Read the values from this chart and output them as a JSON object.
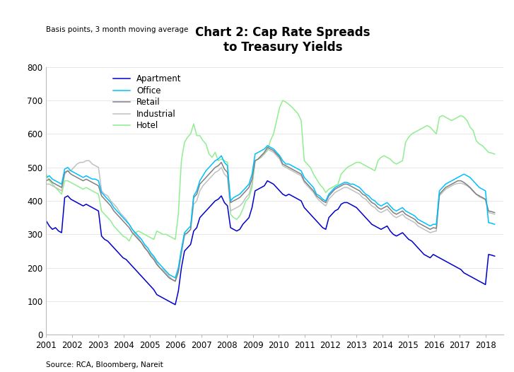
{
  "title": "Chart 2: Cap Rate Spreads\nto Treasury Yields",
  "subtitle": "Basis points, 3 month moving average",
  "source": "Source: RCA, Bloomberg, Nareit",
  "ylim": [
    0,
    800
  ],
  "yticks": [
    0,
    100,
    200,
    300,
    400,
    500,
    600,
    700,
    800
  ],
  "colors": {
    "Apartment": "#0000CD",
    "Office": "#00BFFF",
    "Retail": "#808080",
    "Industrial": "#C0C0C0",
    "Hotel": "#90EE90"
  },
  "series": {
    "Apartment": [
      340,
      325,
      315,
      320,
      310,
      305,
      410,
      415,
      405,
      400,
      395,
      390,
      385,
      390,
      385,
      380,
      375,
      370,
      295,
      285,
      280,
      270,
      260,
      250,
      240,
      230,
      225,
      215,
      205,
      195,
      185,
      175,
      165,
      155,
      145,
      135,
      120,
      115,
      110,
      105,
      100,
      95,
      90,
      130,
      200,
      250,
      260,
      270,
      310,
      320,
      350,
      360,
      370,
      380,
      390,
      400,
      405,
      415,
      395,
      385,
      320,
      315,
      310,
      315,
      330,
      340,
      350,
      380,
      430,
      435,
      440,
      445,
      460,
      455,
      450,
      440,
      430,
      420,
      415,
      420,
      415,
      410,
      405,
      400,
      380,
      370,
      360,
      350,
      340,
      330,
      320,
      315,
      350,
      360,
      370,
      375,
      390,
      395,
      395,
      390,
      385,
      380,
      370,
      360,
      350,
      340,
      330,
      325,
      320,
      315,
      320,
      325,
      310,
      300,
      295,
      300,
      305,
      295,
      285,
      280,
      270,
      260,
      250,
      240,
      235,
      230,
      240,
      235,
      230,
      225,
      220,
      215,
      210,
      205,
      200,
      195,
      185,
      180,
      175,
      170,
      165,
      160,
      155,
      150,
      240,
      238,
      235
    ],
    "Office": [
      470,
      475,
      465,
      460,
      455,
      450,
      495,
      500,
      490,
      485,
      480,
      475,
      470,
      475,
      470,
      465,
      465,
      460,
      425,
      415,
      405,
      395,
      380,
      370,
      360,
      350,
      340,
      330,
      315,
      305,
      295,
      285,
      270,
      260,
      245,
      235,
      220,
      210,
      200,
      190,
      180,
      175,
      170,
      200,
      255,
      305,
      315,
      325,
      415,
      430,
      460,
      475,
      490,
      500,
      510,
      520,
      525,
      535,
      515,
      505,
      400,
      410,
      415,
      420,
      430,
      440,
      450,
      480,
      540,
      545,
      550,
      555,
      565,
      560,
      555,
      545,
      535,
      520,
      510,
      510,
      505,
      500,
      495,
      490,
      470,
      460,
      450,
      440,
      420,
      415,
      405,
      400,
      420,
      430,
      440,
      445,
      450,
      455,
      455,
      450,
      450,
      445,
      440,
      430,
      420,
      415,
      405,
      400,
      390,
      385,
      390,
      395,
      385,
      375,
      370,
      375,
      380,
      370,
      365,
      360,
      355,
      345,
      340,
      335,
      330,
      325,
      330,
      330,
      430,
      440,
      450,
      455,
      460,
      465,
      470,
      475,
      480,
      475,
      470,
      460,
      450,
      440,
      435,
      430,
      335,
      333,
      330
    ],
    "Retail": [
      460,
      465,
      455,
      450,
      445,
      440,
      485,
      490,
      480,
      475,
      470,
      465,
      460,
      465,
      460,
      455,
      450,
      445,
      415,
      405,
      395,
      385,
      370,
      360,
      350,
      340,
      330,
      320,
      305,
      295,
      285,
      275,
      260,
      250,
      235,
      225,
      210,
      200,
      190,
      180,
      170,
      165,
      160,
      190,
      250,
      300,
      305,
      315,
      410,
      420,
      450,
      460,
      470,
      480,
      490,
      500,
      505,
      515,
      495,
      485,
      395,
      400,
      405,
      410,
      420,
      430,
      440,
      465,
      520,
      525,
      535,
      545,
      560,
      555,
      550,
      540,
      530,
      510,
      505,
      500,
      495,
      490,
      485,
      480,
      460,
      450,
      440,
      430,
      415,
      408,
      400,
      395,
      415,
      425,
      435,
      440,
      445,
      450,
      450,
      445,
      440,
      435,
      430,
      420,
      415,
      405,
      395,
      390,
      380,
      375,
      380,
      385,
      375,
      365,
      360,
      365,
      370,
      360,
      355,
      350,
      345,
      335,
      330,
      325,
      320,
      315,
      320,
      318,
      420,
      430,
      440,
      445,
      450,
      455,
      460,
      460,
      455,
      448,
      440,
      430,
      420,
      415,
      410,
      405,
      370,
      368,
      365
    ],
    "Industrial": [
      450,
      450,
      445,
      440,
      435,
      430,
      480,
      490,
      490,
      500,
      510,
      515,
      515,
      520,
      520,
      510,
      505,
      500,
      430,
      420,
      415,
      400,
      390,
      380,
      365,
      355,
      345,
      330,
      315,
      300,
      290,
      275,
      265,
      250,
      240,
      230,
      215,
      200,
      195,
      185,
      175,
      165,
      160,
      185,
      240,
      295,
      305,
      315,
      390,
      400,
      430,
      445,
      455,
      465,
      475,
      485,
      490,
      500,
      480,
      470,
      370,
      375,
      380,
      385,
      395,
      410,
      420,
      450,
      520,
      525,
      530,
      540,
      555,
      550,
      545,
      535,
      525,
      505,
      500,
      495,
      490,
      485,
      480,
      475,
      455,
      445,
      435,
      425,
      410,
      400,
      392,
      385,
      405,
      415,
      425,
      430,
      435,
      440,
      440,
      435,
      430,
      425,
      420,
      410,
      405,
      395,
      385,
      380,
      370,
      365,
      370,
      375,
      365,
      355,
      350,
      355,
      360,
      350,
      345,
      340,
      335,
      325,
      320,
      315,
      310,
      305,
      308,
      310,
      415,
      425,
      435,
      440,
      445,
      450,
      452,
      453,
      450,
      445,
      438,
      428,
      420,
      412,
      408,
      403,
      365,
      363,
      360
    ],
    "Hotel": [
      480,
      460,
      450,
      440,
      430,
      420,
      460,
      460,
      455,
      450,
      445,
      440,
      435,
      440,
      435,
      430,
      425,
      420,
      370,
      360,
      350,
      340,
      325,
      315,
      305,
      295,
      290,
      280,
      300,
      305,
      310,
      305,
      300,
      295,
      290,
      285,
      310,
      305,
      300,
      300,
      295,
      290,
      285,
      360,
      520,
      575,
      590,
      600,
      630,
      595,
      595,
      580,
      570,
      540,
      530,
      545,
      520,
      525,
      520,
      515,
      360,
      350,
      345,
      355,
      375,
      400,
      410,
      440,
      520,
      525,
      535,
      540,
      550,
      580,
      600,
      640,
      680,
      700,
      695,
      688,
      680,
      670,
      660,
      640,
      520,
      510,
      500,
      480,
      465,
      450,
      440,
      425,
      435,
      440,
      445,
      450,
      480,
      490,
      500,
      505,
      510,
      515,
      515,
      510,
      505,
      500,
      495,
      490,
      520,
      530,
      535,
      530,
      525,
      515,
      510,
      515,
      520,
      575,
      590,
      600,
      605,
      610,
      615,
      620,
      625,
      620,
      610,
      600,
      650,
      655,
      650,
      645,
      640,
      645,
      650,
      655,
      650,
      640,
      620,
      610,
      580,
      570,
      565,
      555,
      545,
      543,
      540
    ]
  }
}
